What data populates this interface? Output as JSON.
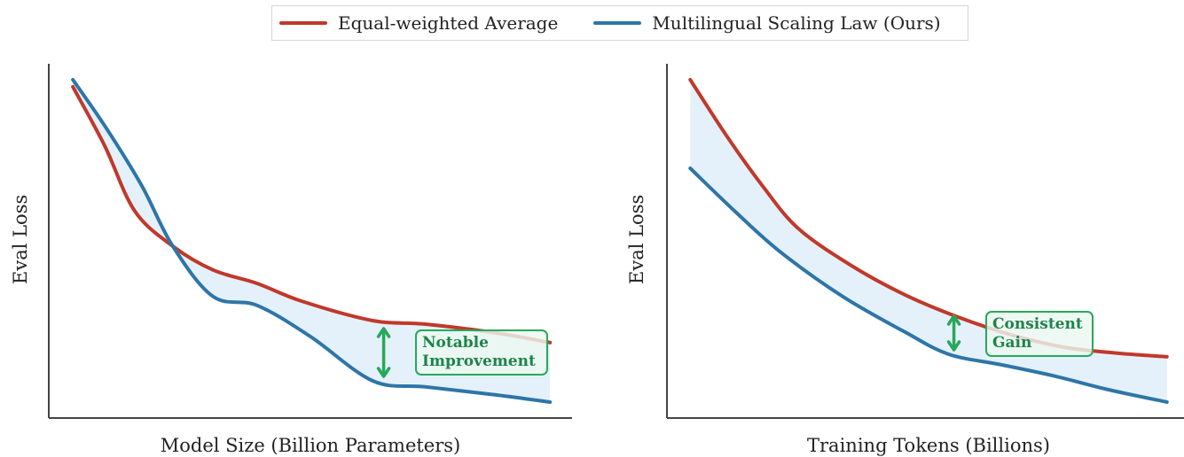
{
  "legend": {
    "position": "top-center",
    "items": [
      {
        "label": "Equal-weighted Average",
        "color": "#c0392b"
      },
      {
        "label": "Multilingual Scaling Law (Ours)",
        "color": "#2e75a8"
      }
    ]
  },
  "colors": {
    "red": "#c0392b",
    "blue": "#2e75a8",
    "fill": "#e4f1fa",
    "annotation": "#27a85a",
    "annotation_text": "#1e8449",
    "axis": "#444444"
  },
  "chart_data": [
    {
      "type": "line",
      "title": "",
      "xlabel": "Model Size (Billion Parameters)",
      "ylabel": "Eval Loss",
      "xlim": [
        0,
        100
      ],
      "ylim": [
        0,
        100
      ],
      "grid": false,
      "ticks": "none",
      "fill_between": true,
      "series": [
        {
          "name": "Equal-weighted Average",
          "color": "#c0392b",
          "x": [
            4.6,
            10.7,
            16.4,
            23.7,
            31.4,
            39.8,
            48.3,
            61.9,
            72.0,
            85.6,
            95.8
          ],
          "y": [
            93.5,
            76.8,
            58.5,
            48.5,
            41.8,
            38.0,
            33.0,
            27.5,
            26.5,
            24.0,
            21.3
          ]
        },
        {
          "name": "Multilingual Scaling Law (Ours)",
          "color": "#2e75a8",
          "x": [
            4.6,
            11.0,
            17.8,
            23.7,
            31.4,
            39.8,
            50.0,
            61.9,
            72.0,
            85.6,
            95.8
          ],
          "y": [
            95.5,
            81.8,
            65.5,
            48.5,
            34.3,
            31.8,
            23.0,
            10.5,
            8.8,
            6.5,
            4.5
          ]
        }
      ],
      "annotation": {
        "text_lines": [
          "Notable",
          "Improvement"
        ],
        "arrow_x": 64.0,
        "arrow_y": [
          25.5,
          11.5
        ]
      }
    },
    {
      "type": "line",
      "title": "",
      "xlabel": "Training Tokens (Billions)",
      "ylabel": "Eval Loss",
      "xlim": [
        0,
        100
      ],
      "ylim": [
        0,
        100
      ],
      "grid": false,
      "ticks": "none",
      "fill_between": true,
      "series": [
        {
          "name": "Equal-weighted Average",
          "color": "#c0392b",
          "x": [
            4.5,
            11.7,
            18.5,
            25.4,
            35.7,
            46.0,
            56.3,
            66.6,
            76.8,
            87.1,
            96.7
          ],
          "y": [
            95.5,
            79.3,
            65.5,
            53.5,
            43.0,
            34.8,
            28.5,
            23.5,
            20.0,
            18.3,
            17.3
          ]
        },
        {
          "name": "Multilingual Scaling Law (Ours)",
          "color": "#2e75a8",
          "x": [
            4.5,
            13.4,
            22.0,
            34.0,
            46.0,
            54.5,
            64.8,
            75.1,
            85.4,
            96.7
          ],
          "y": [
            70.5,
            58.0,
            46.8,
            34.3,
            24.3,
            18.0,
            15.0,
            11.8,
            8.0,
            4.5
          ]
        }
      ],
      "annotation": {
        "text_lines": [
          "Consistent",
          "Gain"
        ],
        "arrow_x": 55.5,
        "arrow_y": [
          29.0,
          19.0
        ]
      }
    }
  ]
}
